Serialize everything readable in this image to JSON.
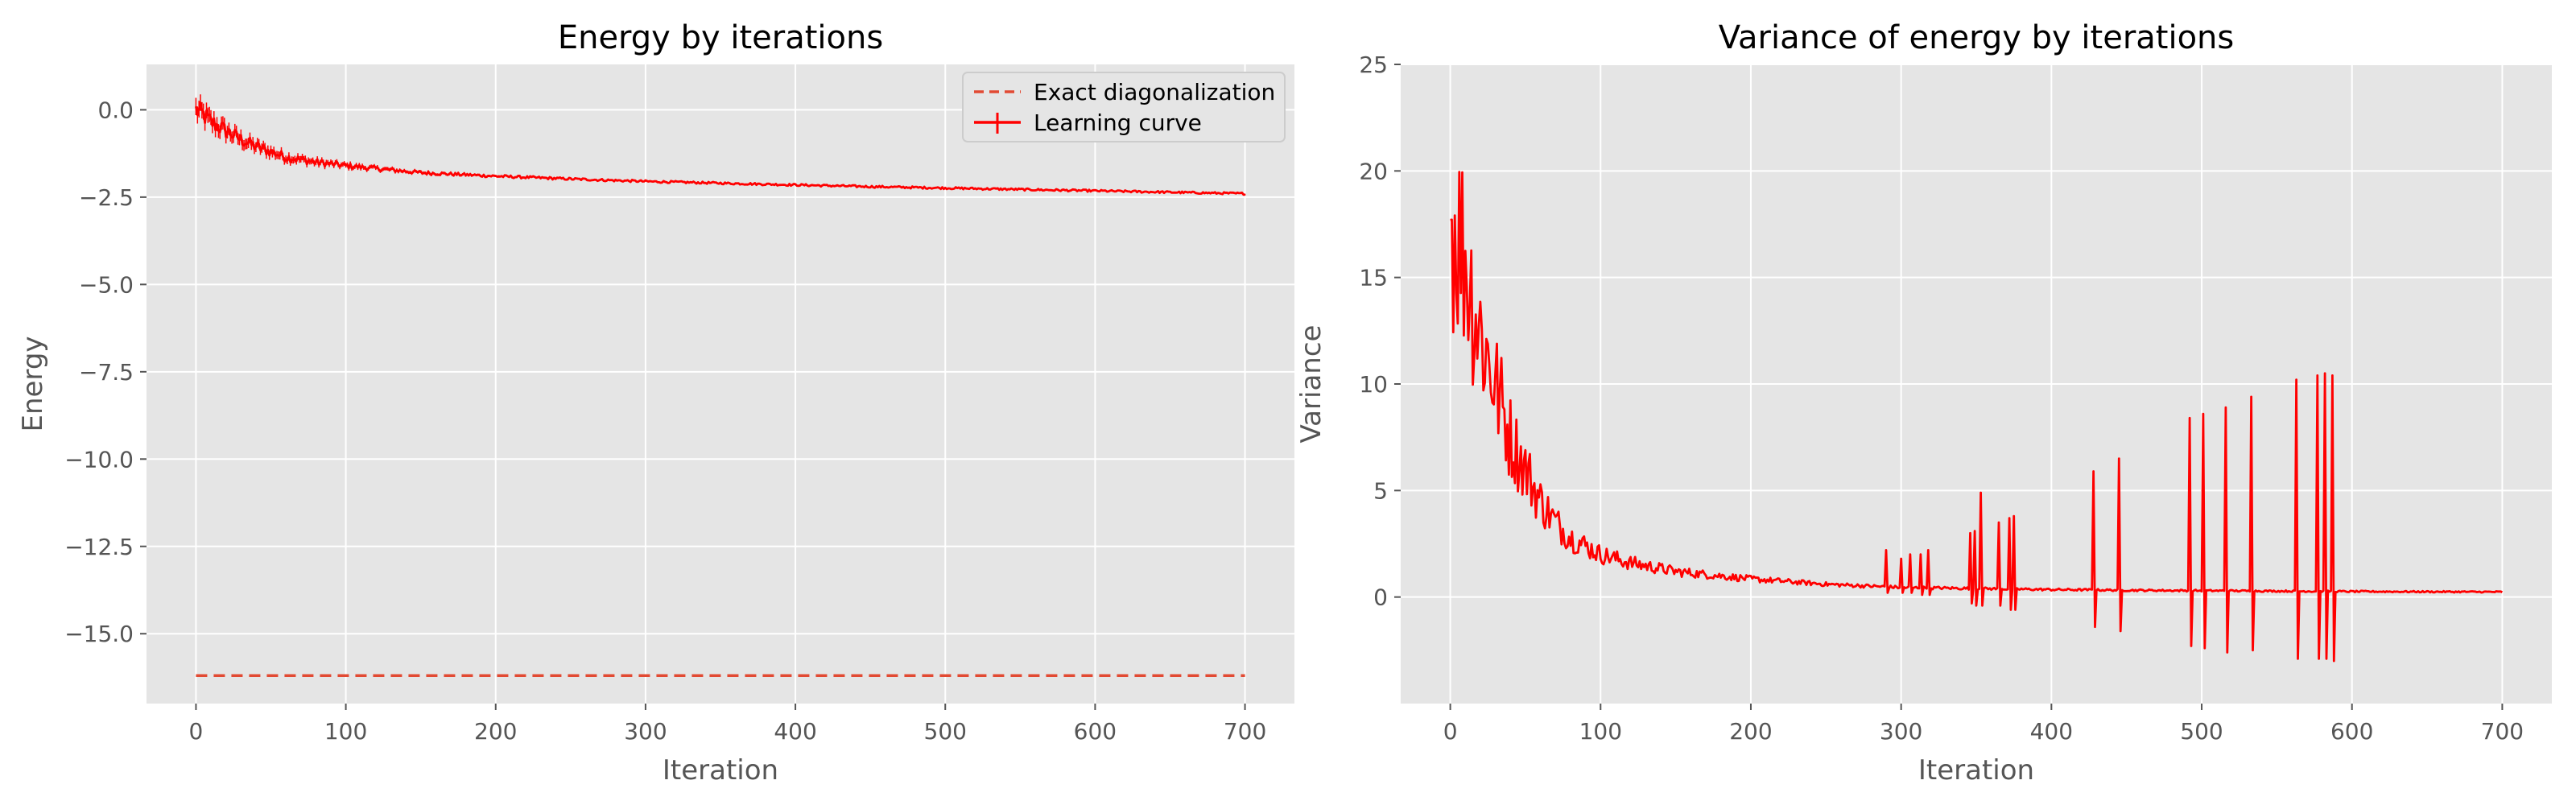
{
  "colors": {
    "axes_bg": "#E5E5E5",
    "grid": "#FFFFFF",
    "tick": "#555555",
    "series": "#FF0000",
    "exact_line": "#E24A33"
  },
  "chart_data": [
    {
      "type": "line",
      "title": "Energy by iterations",
      "xlabel": "Iteration",
      "ylabel": "Energy",
      "xlim": [
        -33,
        733
      ],
      "ylim": [
        -17.0,
        1.3
      ],
      "xticks": [
        0,
        100,
        200,
        300,
        400,
        500,
        600,
        700
      ],
      "yticks": [
        0.0,
        -2.5,
        -5.0,
        -7.5,
        -10.0,
        -12.5,
        -15.0
      ],
      "ytick_labels": [
        "0.0",
        "−2.5",
        "−5.0",
        "−7.5",
        "−10.0",
        "−12.5",
        "−15.0"
      ],
      "grid": true,
      "legend": {
        "position": "top-right",
        "entries": [
          "Exact diagonalization",
          "Learning curve"
        ]
      },
      "series": [
        {
          "name": "Exact diagonalization",
          "style": "dashed",
          "x": [
            0,
            700
          ],
          "y": [
            -16.2,
            -16.2
          ]
        },
        {
          "name": "Learning curve",
          "style": "solid-errorbar",
          "x": [
            0,
            5,
            10,
            20,
            30,
            40,
            50,
            60,
            80,
            100,
            125,
            150,
            175,
            200,
            250,
            300,
            350,
            400,
            450,
            500,
            550,
            600,
            650,
            700
          ],
          "y": [
            0.0,
            -0.15,
            -0.35,
            -0.6,
            -0.85,
            -1.05,
            -1.2,
            -1.35,
            -1.5,
            -1.6,
            -1.7,
            -1.8,
            -1.85,
            -1.9,
            -1.98,
            -2.05,
            -2.1,
            -2.15,
            -2.2,
            -2.24,
            -2.28,
            -2.32,
            -2.36,
            -2.4
          ]
        }
      ]
    },
    {
      "type": "line",
      "title": "Variance of energy by iterations",
      "xlabel": "Iteration",
      "ylabel": "Variance",
      "xlim": [
        -33,
        733
      ],
      "ylim": [
        -5,
        25
      ],
      "xticks": [
        0,
        100,
        200,
        300,
        400,
        500,
        600,
        700
      ],
      "yticks": [
        0,
        5,
        10,
        15,
        20,
        25
      ],
      "ytick_labels": [
        "0",
        "5",
        "10",
        "15",
        "20",
        "25"
      ],
      "grid": true,
      "series": [
        {
          "name": "",
          "style": "solid",
          "x": [
            0,
            5,
            10,
            15,
            20,
            30,
            40,
            50,
            60,
            70,
            80,
            90,
            100,
            120,
            150,
            200,
            250,
            300,
            350,
            400,
            450,
            500,
            550,
            600,
            650,
            700
          ],
          "y": [
            18.0,
            17.0,
            16.0,
            14.0,
            12.5,
            10.0,
            7.5,
            6.0,
            4.5,
            3.5,
            2.8,
            2.4,
            2.0,
            1.6,
            1.2,
            0.85,
            0.6,
            0.45,
            0.4,
            0.35,
            0.32,
            0.3,
            0.28,
            0.26,
            0.25,
            0.24
          ]
        }
      ],
      "spikes": [
        {
          "x": 290,
          "high": 2.2,
          "low": 0.2
        },
        {
          "x": 300,
          "high": 1.8,
          "low": 0.2
        },
        {
          "x": 306,
          "high": 2.0,
          "low": 0.2
        },
        {
          "x": 313,
          "high": 2.0,
          "low": 0.1
        },
        {
          "x": 318,
          "high": 2.2,
          "low": 0.1
        },
        {
          "x": 346,
          "high": 3.0,
          "low": -0.3
        },
        {
          "x": 349,
          "high": 3.1,
          "low": -0.4
        },
        {
          "x": 353,
          "high": 4.9,
          "low": -0.4
        },
        {
          "x": 365,
          "high": 3.5,
          "low": -0.4
        },
        {
          "x": 372,
          "high": 3.7,
          "low": -0.6
        },
        {
          "x": 375,
          "high": 3.8,
          "low": -0.6
        },
        {
          "x": 428,
          "high": 5.9,
          "low": -1.4
        },
        {
          "x": 445,
          "high": 6.5,
          "low": -1.6
        },
        {
          "x": 492,
          "high": 8.4,
          "low": -2.3
        },
        {
          "x": 501,
          "high": 8.6,
          "low": -2.4
        },
        {
          "x": 516,
          "high": 8.9,
          "low": -2.6
        },
        {
          "x": 533,
          "high": 9.4,
          "low": -2.5
        },
        {
          "x": 563,
          "high": 10.2,
          "low": -2.9
        },
        {
          "x": 577,
          "high": 10.4,
          "low": -2.9
        },
        {
          "x": 582,
          "high": 10.5,
          "low": -2.9
        },
        {
          "x": 587,
          "high": 10.4,
          "low": -3.0
        }
      ]
    }
  ]
}
